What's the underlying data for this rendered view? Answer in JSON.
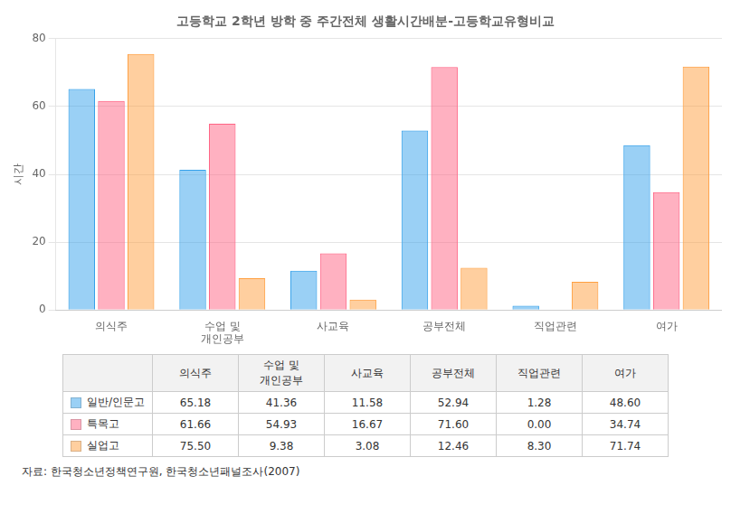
{
  "chart_data": {
    "type": "bar",
    "title": "고등학교 2학년 방학 중 주간전체 생활시간배분-고등학교유형비교",
    "ylabel": "시간",
    "categories": [
      "의식주",
      "수업 및\n개인공부",
      "사교육",
      "공부전체",
      "직업관련",
      "여가"
    ],
    "series": [
      {
        "name": "일반/인문고",
        "values": [
          65.18,
          41.36,
          11.58,
          52.94,
          1.28,
          48.6
        ],
        "value_labels": [
          "65.18",
          "41.36",
          "11.58",
          "52.94",
          "1.28",
          "48.60"
        ]
      },
      {
        "name": "특목고",
        "values": [
          61.66,
          54.93,
          16.67,
          71.6,
          0.0,
          34.74
        ],
        "value_labels": [
          "61.66",
          "54.93",
          "16.67",
          "71.60",
          "0.00",
          "34.74"
        ]
      },
      {
        "name": "실업고",
        "values": [
          75.5,
          9.38,
          3.08,
          12.46,
          8.3,
          71.74
        ],
        "value_labels": [
          "75.50",
          "9.38",
          "3.08",
          "12.46",
          "8.30",
          "71.74"
        ]
      }
    ],
    "ylim": [
      0,
      80
    ],
    "yticks": [
      0,
      20,
      40,
      60,
      80
    ],
    "grid": true,
    "source": "자료: 한국청소년정책연구원, 한국청소년패널조사(2007)"
  }
}
